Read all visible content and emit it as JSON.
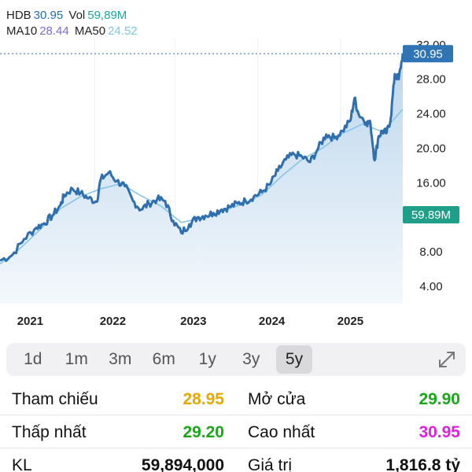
{
  "header": {
    "symbol": "HDB",
    "price": "30.95",
    "vol_label": "Vol",
    "vol_value": "59,89M",
    "ma10_label": "MA10",
    "ma10_value": "28.44",
    "ma50_label": "MA50",
    "ma50_value": "24.52"
  },
  "chart_data": {
    "type": "area",
    "x_labels": [
      "2021",
      "2022",
      "2023",
      "2024",
      "2025"
    ],
    "y_ticks": [
      "32.00",
      "28.00",
      "24.00",
      "20.00",
      "16.00",
      "8.00",
      "4.00"
    ],
    "ylim": [
      2,
      32.8
    ],
    "last_price_tag": "30.95",
    "volume_tag": "59.89M",
    "colors": {
      "price_line": "#2f6fae",
      "ma_line": "#86c5e8",
      "area_top": "#bcd6ec",
      "area_bottom": "#f4f8fc",
      "tag_price": "#2f74b5",
      "tag_volume": "#1f9e8a",
      "volume_up": "#3fae8f",
      "volume_down": "#e07a7a"
    },
    "series": [
      {
        "name": "HDB",
        "points": [
          [
            0.0,
            7.0
          ],
          [
            0.03,
            7.6
          ],
          [
            0.06,
            9.5
          ],
          [
            0.09,
            10.8
          ],
          [
            0.11,
            11.3
          ],
          [
            0.13,
            12.2
          ],
          [
            0.15,
            13.4
          ],
          [
            0.16,
            14.6
          ],
          [
            0.18,
            15.3
          ],
          [
            0.2,
            14.8
          ],
          [
            0.22,
            14.2
          ],
          [
            0.24,
            13.8
          ],
          [
            0.25,
            16.4
          ],
          [
            0.27,
            17.2
          ],
          [
            0.29,
            16.2
          ],
          [
            0.31,
            15.6
          ],
          [
            0.33,
            13.9
          ],
          [
            0.35,
            12.9
          ],
          [
            0.37,
            13.6
          ],
          [
            0.39,
            14.1
          ],
          [
            0.41,
            13.9
          ],
          [
            0.43,
            11.6
          ],
          [
            0.45,
            10.2
          ],
          [
            0.47,
            11.2
          ],
          [
            0.49,
            12.0
          ],
          [
            0.51,
            12.2
          ],
          [
            0.53,
            12.5
          ],
          [
            0.55,
            12.9
          ],
          [
            0.57,
            13.2
          ],
          [
            0.59,
            13.6
          ],
          [
            0.61,
            13.9
          ],
          [
            0.63,
            14.4
          ],
          [
            0.65,
            14.9
          ],
          [
            0.67,
            15.8
          ],
          [
            0.69,
            17.4
          ],
          [
            0.71,
            18.7
          ],
          [
            0.73,
            19.3
          ],
          [
            0.75,
            19.0
          ],
          [
            0.77,
            18.4
          ],
          [
            0.79,
            20.0
          ],
          [
            0.81,
            21.6
          ],
          [
            0.83,
            21.2
          ],
          [
            0.85,
            22.0
          ],
          [
            0.87,
            23.2
          ],
          [
            0.88,
            25.8
          ],
          [
            0.89,
            24.0
          ],
          [
            0.91,
            23.0
          ],
          [
            0.92,
            22.8
          ],
          [
            0.93,
            18.6
          ],
          [
            0.94,
            21.4
          ],
          [
            0.95,
            22.0
          ],
          [
            0.96,
            21.8
          ],
          [
            0.97,
            23.4
          ],
          [
            0.98,
            28.6
          ],
          [
            0.99,
            28.0
          ],
          [
            1.0,
            30.95
          ]
        ]
      },
      {
        "name": "MA50",
        "points": [
          [
            0.0,
            6.6
          ],
          [
            0.05,
            8.4
          ],
          [
            0.1,
            10.6
          ],
          [
            0.15,
            13.0
          ],
          [
            0.2,
            14.4
          ],
          [
            0.25,
            15.3
          ],
          [
            0.3,
            15.9
          ],
          [
            0.35,
            14.5
          ],
          [
            0.4,
            13.3
          ],
          [
            0.45,
            11.4
          ],
          [
            0.5,
            11.9
          ],
          [
            0.55,
            12.7
          ],
          [
            0.6,
            13.5
          ],
          [
            0.65,
            14.6
          ],
          [
            0.7,
            16.8
          ],
          [
            0.75,
            18.7
          ],
          [
            0.8,
            20.0
          ],
          [
            0.85,
            21.7
          ],
          [
            0.9,
            22.8
          ],
          [
            0.95,
            21.9
          ],
          [
            1.0,
            24.52
          ]
        ]
      }
    ]
  },
  "ranges": [
    {
      "label": "1d",
      "active": false
    },
    {
      "label": "1m",
      "active": false
    },
    {
      "label": "3m",
      "active": false
    },
    {
      "label": "6m",
      "active": false
    },
    {
      "label": "1y",
      "active": false
    },
    {
      "label": "3y",
      "active": false
    },
    {
      "label": "5y",
      "active": true
    }
  ],
  "stats": {
    "ref_label": "Tham chiếu",
    "ref_value": "28.95",
    "ref_color": "#e6a800",
    "open_label": "Mở cửa",
    "open_value": "29.90",
    "open_color": "#18a818",
    "low_label": "Thấp nhất",
    "low_value": "29.20",
    "low_color": "#18a818",
    "high_label": "Cao nhất",
    "high_value": "30.95",
    "high_color": "#e020e0",
    "vol_label": "KL",
    "vol_value": "59,894,000",
    "vol_color": "#111111",
    "val_label": "Giá trị",
    "val_value": "1,816.8 tỷ",
    "val_color": "#111111"
  },
  "icons": {
    "expand": "expand-diagonal-icon"
  }
}
